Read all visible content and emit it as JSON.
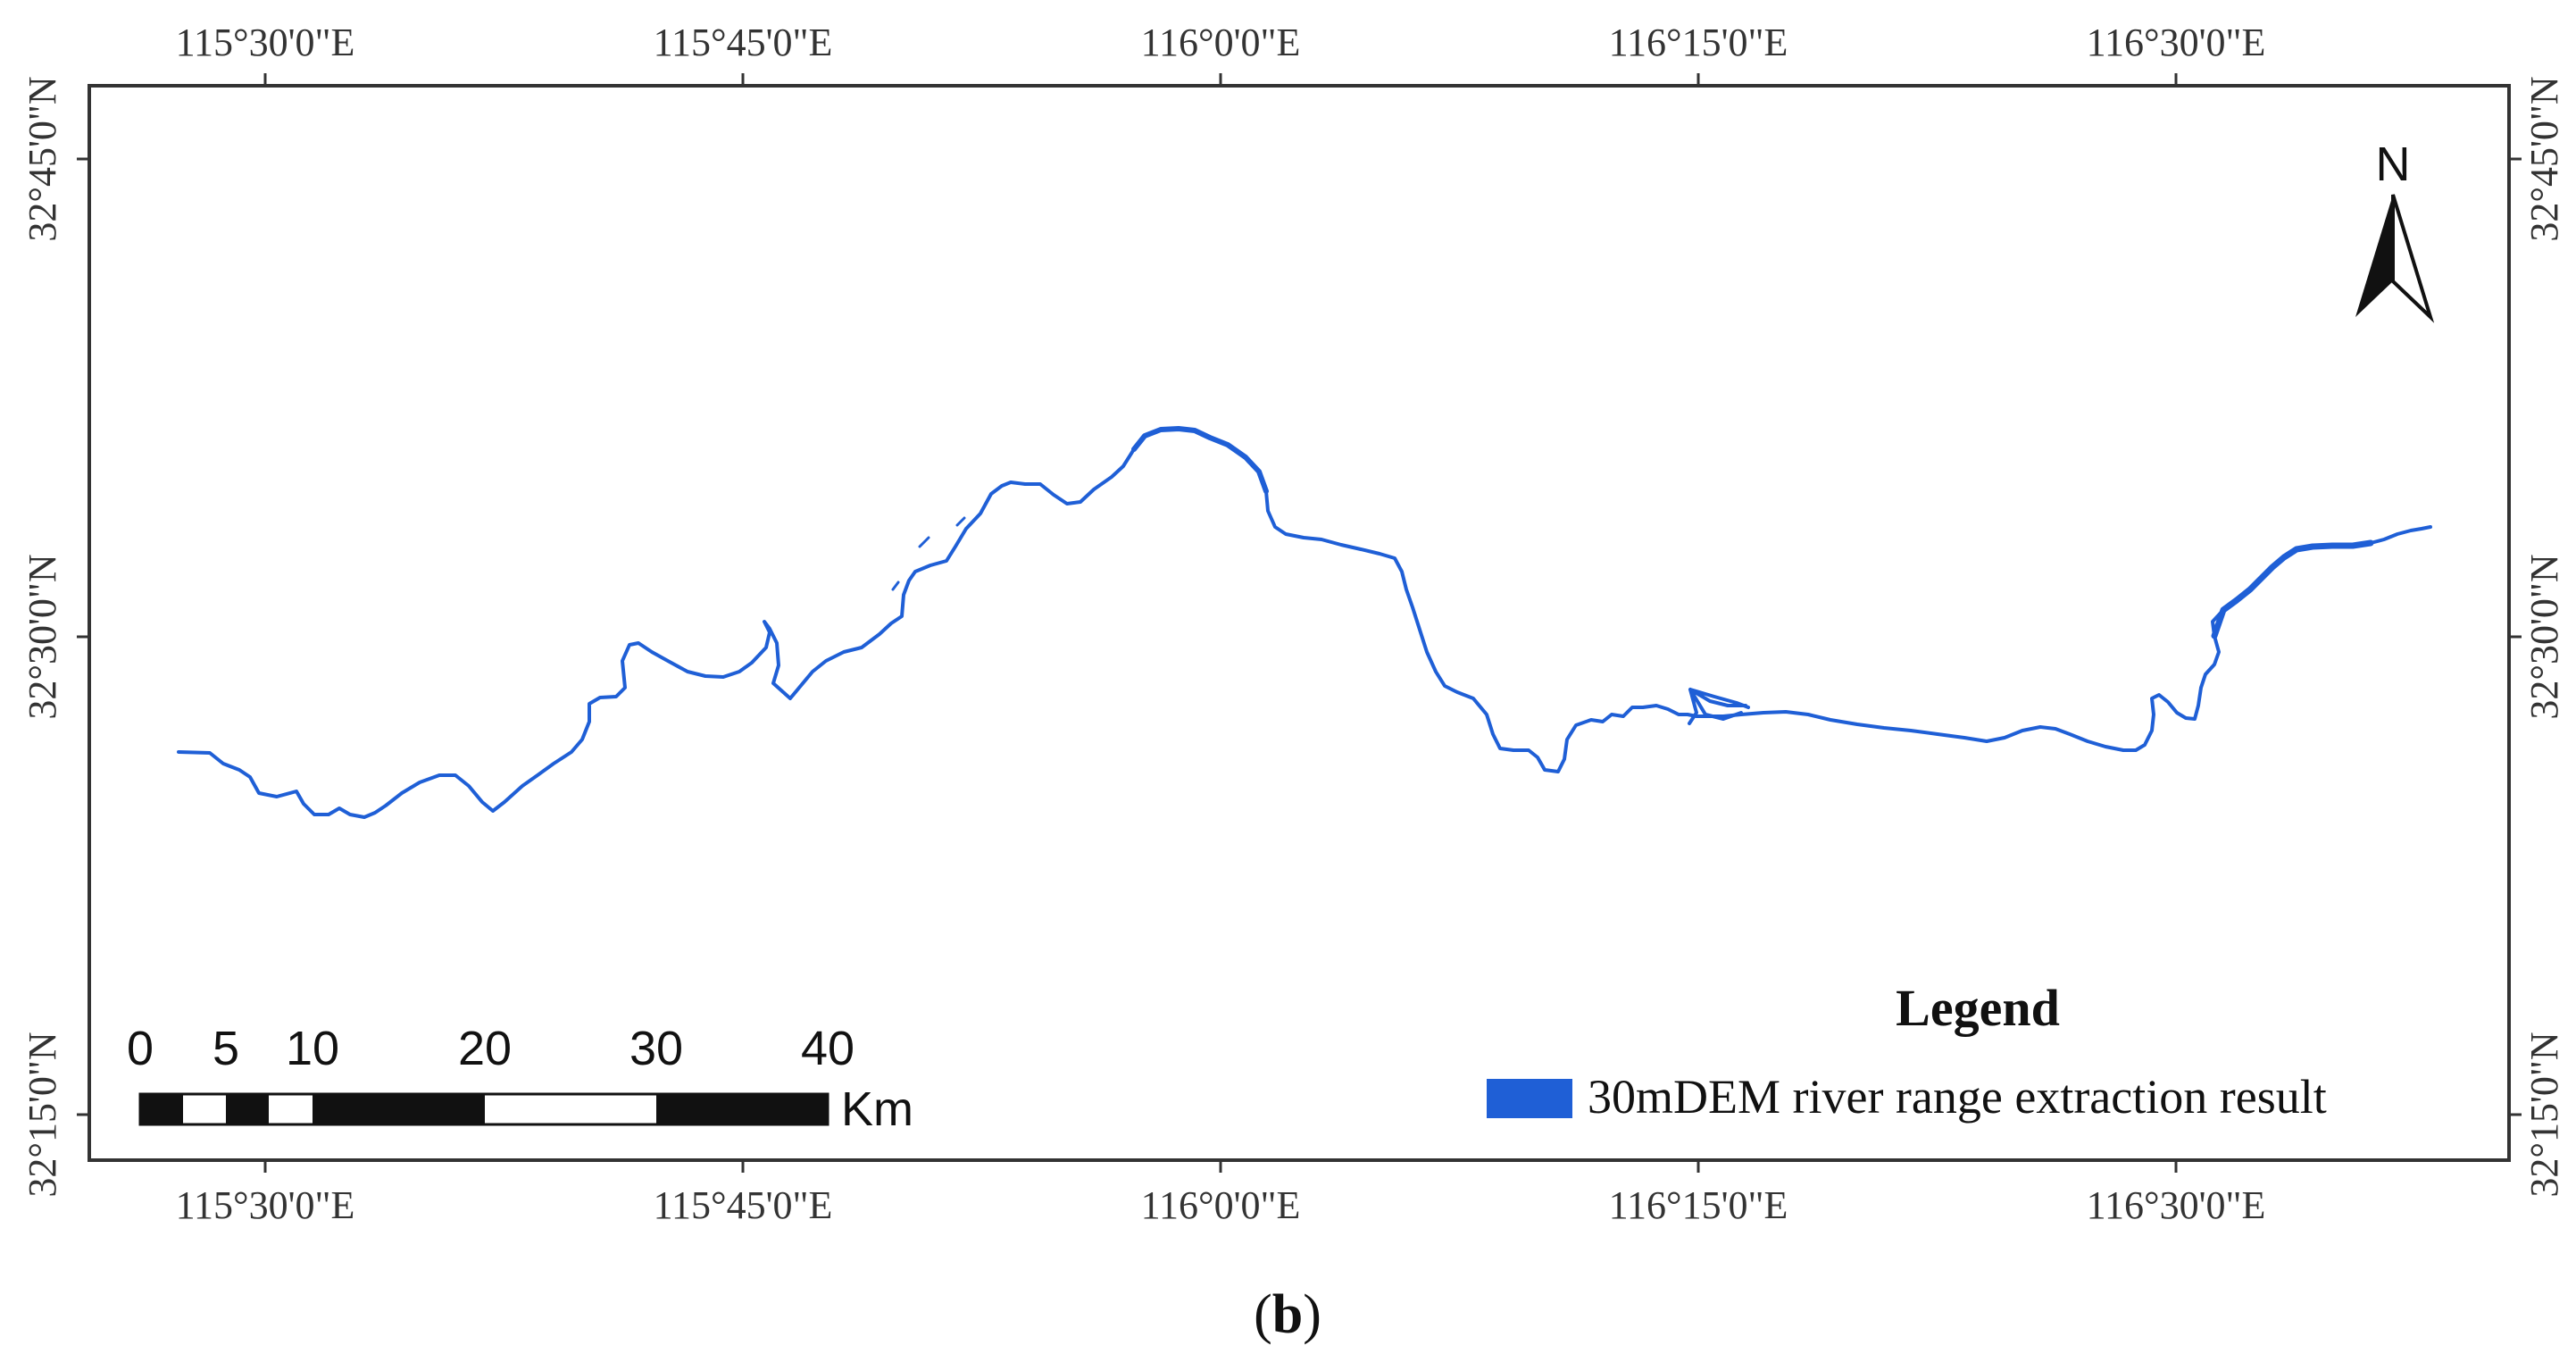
{
  "map": {
    "top_lon_labels": [
      "115°30'0\"E",
      "115°45'0\"E",
      "116°0'0\"E",
      "116°15'0\"E",
      "116°30'0\"E"
    ],
    "bottom_lon_labels": [
      "115°30'0\"E",
      "115°45'0\"E",
      "116°0'0\"E",
      "116°15'0\"E",
      "116°30'0\"E"
    ],
    "left_lat_labels": [
      "32°45'0\"N",
      "32°30'0\"N",
      "32°15'0\"N"
    ],
    "right_lat_labels": [
      "32°45'0\"N",
      "32°30'0\"N",
      "32°15'0\"N"
    ],
    "north_arrow": {
      "label": "N",
      "icon": "north-arrow-icon"
    },
    "legend": {
      "title": "Legend",
      "items": [
        {
          "label": "30mDEM river range extraction result",
          "color": "#1f5fd6"
        }
      ]
    },
    "scale_bar": {
      "labels": [
        "0",
        "5",
        "10",
        "20",
        "30",
        "40"
      ],
      "unit": "Km"
    },
    "river": {
      "color": "#1f5fd6"
    }
  },
  "caption": {
    "open": "(",
    "letter": "b",
    "close": ")"
  }
}
